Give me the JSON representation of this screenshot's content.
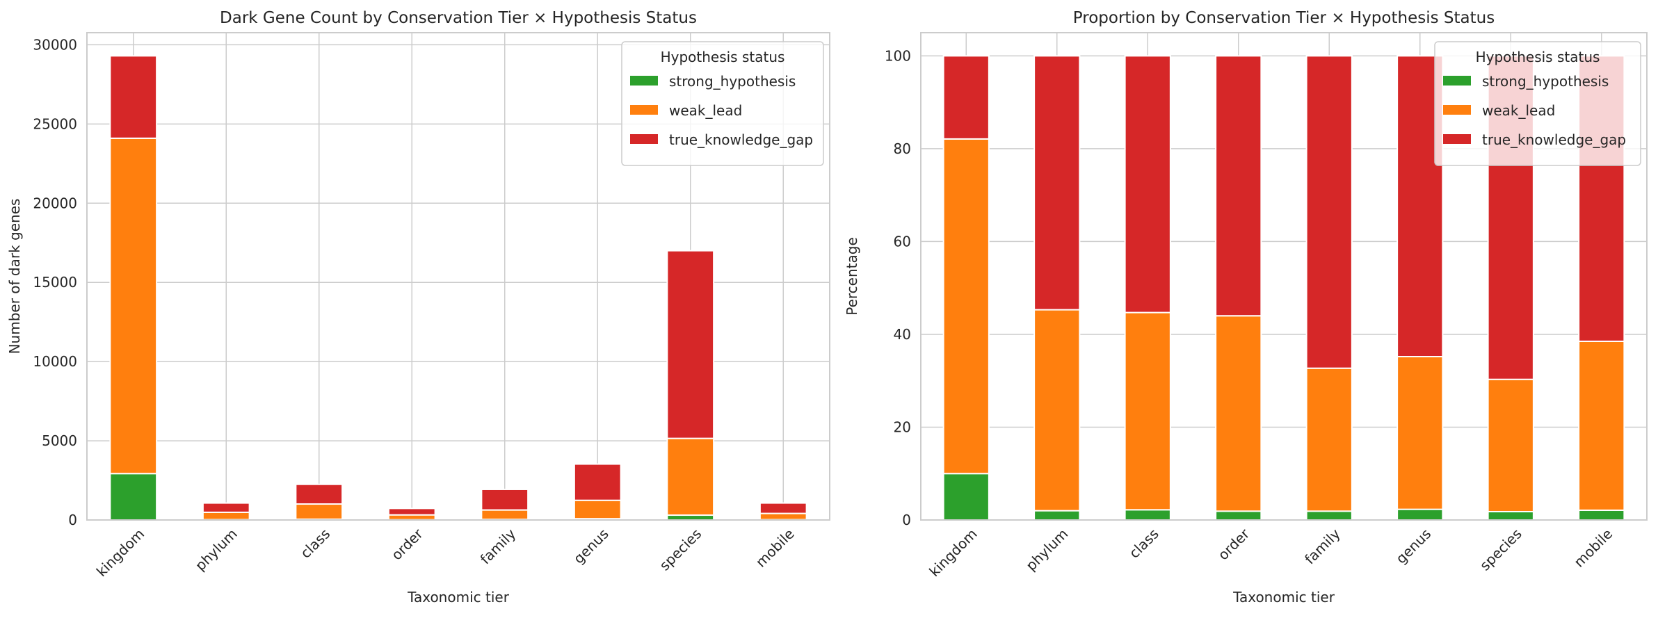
{
  "colors": {
    "strong_hypothesis": "#2ca02c",
    "weak_lead": "#ff7f0e",
    "true_knowledge_gap": "#d62728",
    "grid": "#cccccc"
  },
  "chart_data": [
    {
      "type": "bar",
      "stacked": true,
      "title": "Dark Gene Count by Conservation Tier × Hypothesis Status",
      "xlabel": "Taxonomic tier",
      "ylabel": "Number of dark genes",
      "ylim": [
        0,
        30765
      ],
      "yticks": [
        0,
        5000,
        10000,
        15000,
        20000,
        25000,
        30000
      ],
      "grid": true,
      "legend": {
        "title": "Hypothesis status",
        "placement": "top-right",
        "entries": [
          "strong_hypothesis",
          "weak_lead",
          "true_knowledge_gap"
        ]
      },
      "categories": [
        "kingdom",
        "phylum",
        "class",
        "order",
        "family",
        "genus",
        "species",
        "mobile"
      ],
      "series": [
        {
          "name": "strong_hypothesis",
          "values": [
            2930,
            22,
            50,
            15,
            39,
            81,
            306,
            22
          ]
        },
        {
          "name": "weak_lead",
          "values": [
            21170,
            463,
            958,
            307,
            593,
            1161,
            4845,
            391
          ]
        },
        {
          "name": "true_knowledge_gap",
          "values": [
            5200,
            585,
            1242,
            408,
            1300,
            2288,
            11849,
            657
          ]
        }
      ]
    },
    {
      "type": "bar",
      "stacked": true,
      "title": "Proportion by Conservation Tier × Hypothesis Status",
      "xlabel": "Taxonomic tier",
      "ylabel": "Percentage",
      "ylim": [
        0,
        105
      ],
      "yticks": [
        0,
        20,
        40,
        60,
        80,
        100
      ],
      "grid": true,
      "legend": {
        "title": "Hypothesis status",
        "placement": "top-right",
        "entries": [
          "strong_hypothesis",
          "weak_lead",
          "true_knowledge_gap"
        ]
      },
      "categories": [
        "kingdom",
        "phylum",
        "class",
        "order",
        "family",
        "genus",
        "species",
        "mobile"
      ],
      "series": [
        {
          "name": "strong_hypothesis",
          "values": [
            10.0,
            2.0,
            2.2,
            1.9,
            1.9,
            2.3,
            1.8,
            2.1
          ]
        },
        {
          "name": "weak_lead",
          "values": [
            72.1,
            43.3,
            42.5,
            42.1,
            30.8,
            32.9,
            28.5,
            36.4
          ]
        },
        {
          "name": "true_knowledge_gap",
          "values": [
            17.9,
            54.7,
            55.3,
            56.0,
            67.3,
            64.8,
            69.7,
            61.5
          ]
        }
      ]
    }
  ]
}
